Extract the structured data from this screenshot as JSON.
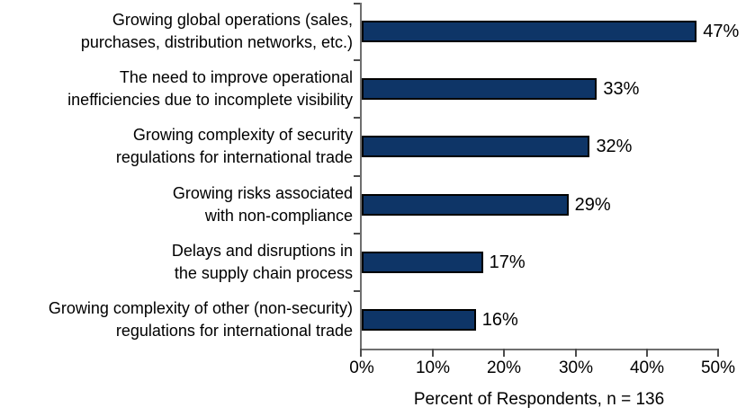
{
  "chart_data": {
    "type": "bar",
    "orientation": "horizontal",
    "title": "",
    "categories": [
      "Growing global operations (sales, purchases, distribution networks, etc.)",
      "The need to improve operational inefficiencies due to incomplete visibility",
      "Growing complexity of security regulations for international trade",
      "Growing risks associated with non-compliance",
      "Delays and disruptions in the supply chain process",
      "Growing complexity of other (non-security) regulations for international trade"
    ],
    "category_lines": [
      [
        "Growing global operations (sales,",
        "purchases, distribution networks, etc.)"
      ],
      [
        "The need to improve operational",
        "inefficiencies due to incomplete visibility"
      ],
      [
        "Growing complexity of security",
        "regulations for international trade"
      ],
      [
        "Growing risks associated",
        "with non-compliance"
      ],
      [
        "Delays and disruptions in",
        "the supply chain process"
      ],
      [
        "Growing complexity of other (non-security)",
        "regulations for international trade"
      ]
    ],
    "values": [
      47,
      33,
      32,
      29,
      17,
      16
    ],
    "value_labels": [
      "47%",
      "33%",
      "32%",
      "29%",
      "17%",
      "16%"
    ],
    "x_ticks": [
      "0%",
      "10%",
      "20%",
      "30%",
      "40%",
      "50%"
    ],
    "xlim": [
      0,
      50
    ],
    "xlabel": "Percent of Respondents, n = 136",
    "grid": false,
    "legend": "none",
    "bar_color": "#0E3567",
    "bar_border_color": "#000000",
    "axis_color": "#6F6F6F"
  }
}
